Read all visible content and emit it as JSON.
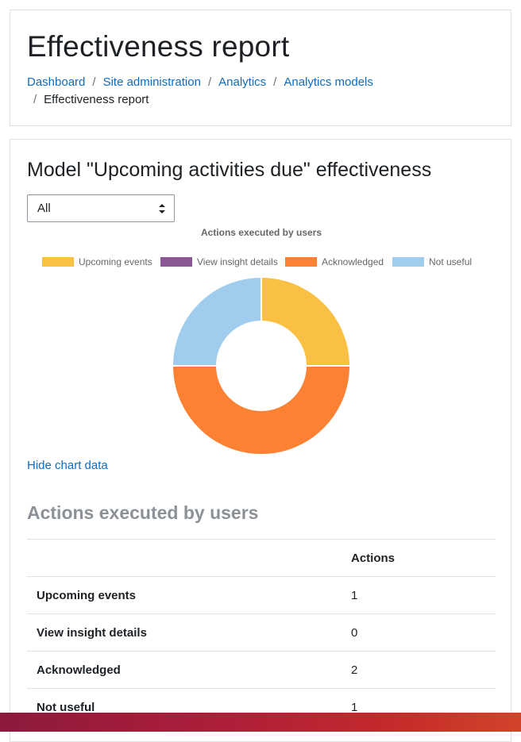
{
  "header": {
    "title": "Effectiveness report",
    "breadcrumb": [
      {
        "label": "Dashboard"
      },
      {
        "label": "Site administration"
      },
      {
        "label": "Analytics"
      },
      {
        "label": "Analytics models"
      },
      {
        "label": "Effectiveness report"
      }
    ],
    "separator": "/"
  },
  "main": {
    "model_title": "Model \"Upcoming activities due\" effectiveness",
    "filter": {
      "selected": "All"
    },
    "hide_chart_link": "Hide chart data",
    "table_title": "Actions executed by users",
    "table": {
      "columns": [
        "",
        "Actions"
      ],
      "rows": [
        {
          "label": "Upcoming events",
          "value": "1"
        },
        {
          "label": "View insight details",
          "value": "0"
        },
        {
          "label": "Acknowledged",
          "value": "2"
        },
        {
          "label": "Not useful",
          "value": "1"
        }
      ]
    }
  },
  "chart_data": {
    "type": "pie",
    "variant": "doughnut",
    "title": "Actions executed by users",
    "categories": [
      "Upcoming events",
      "View insight details",
      "Acknowledged",
      "Not useful"
    ],
    "values": [
      1,
      0,
      2,
      1
    ],
    "colors": [
      "#f9c043",
      "#8a5894",
      "#fc8133",
      "#a0cded"
    ],
    "legend": "top"
  },
  "colors": {
    "link": "#0f6cbf",
    "footer_gradient": [
      "#8c1a3b",
      "#d2432b"
    ]
  }
}
